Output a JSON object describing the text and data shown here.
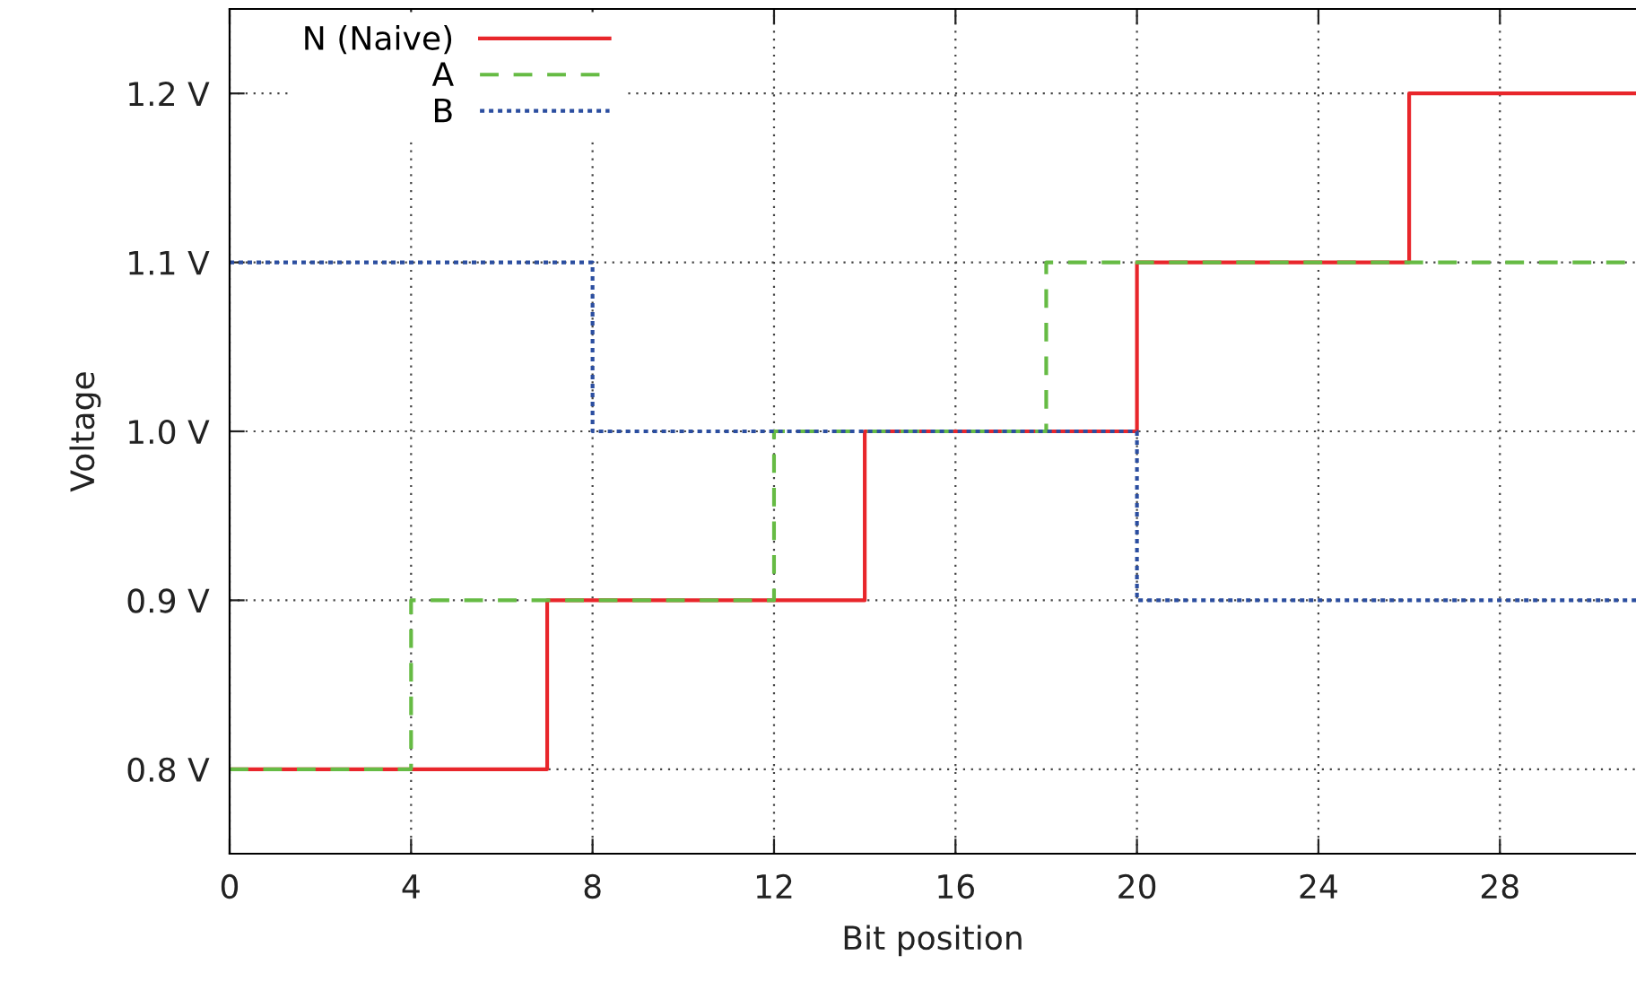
{
  "chart_data": {
    "type": "step",
    "xlabel": "Bit position",
    "ylabel": "Voltage",
    "xlim": [
      0,
      31
    ],
    "xticks": [
      0,
      4,
      8,
      12,
      16,
      20,
      24,
      28
    ],
    "ylim": [
      0.75,
      1.25
    ],
    "yticks": [
      {
        "value": 0.8,
        "label": "0.8 V"
      },
      {
        "value": 0.9,
        "label": "0.9 V"
      },
      {
        "value": 1.0,
        "label": "1.0 V"
      },
      {
        "value": 1.1,
        "label": "1.1 V"
      },
      {
        "value": 1.2,
        "label": "1.2 V"
      }
    ],
    "grid": true,
    "legend": "top left",
    "marker": "none",
    "series": [
      {
        "name": "N (Naive)",
        "color": "#e8262b",
        "line_style": "solid",
        "x": [
          0,
          7,
          14,
          20,
          26,
          31
        ],
        "values": [
          0.8,
          0.9,
          1.0,
          1.1,
          1.2,
          1.2
        ]
      },
      {
        "name": "A",
        "color": "#66bb44",
        "line_style": "dashed",
        "x": [
          0,
          4,
          12,
          18,
          31
        ],
        "values": [
          0.8,
          0.9,
          1.0,
          1.1,
          1.1
        ]
      },
      {
        "name": "B",
        "color": "#2b4ea0",
        "line_style": "dotted",
        "x": [
          0,
          8,
          20,
          31
        ],
        "values": [
          1.1,
          1.0,
          0.9,
          0.9
        ]
      }
    ]
  }
}
